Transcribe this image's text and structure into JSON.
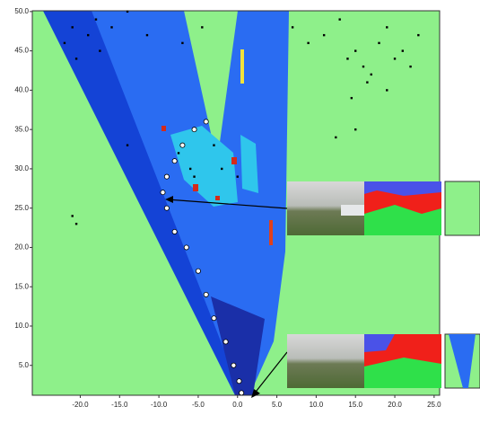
{
  "chart_data": {
    "type": "scatter",
    "xlim": [
      -26.1,
      25.7
    ],
    "ylim": [
      1.2,
      50.1
    ],
    "xticks": [
      {
        "value": -20,
        "label": "-20.0"
      },
      {
        "value": -15,
        "label": "-15.0"
      },
      {
        "value": -10,
        "label": "-10.0"
      },
      {
        "value": -5,
        "label": "-5.0"
      },
      {
        "value": 0,
        "label": "0.0"
      },
      {
        "value": 5,
        "label": "5.0"
      },
      {
        "value": 10,
        "label": "10.0"
      },
      {
        "value": 15,
        "label": "15.0"
      },
      {
        "value": 20,
        "label": "20.0"
      },
      {
        "value": 25,
        "label": "25.0"
      }
    ],
    "yticks": [
      {
        "value": 5,
        "label": "5.0"
      },
      {
        "value": 10,
        "label": "10.0"
      },
      {
        "value": 15,
        "label": "15.0"
      },
      {
        "value": 20,
        "label": "20.0"
      },
      {
        "value": 25,
        "label": "25.0"
      },
      {
        "value": 30,
        "label": "30.0"
      },
      {
        "value": 35,
        "label": "35.0"
      },
      {
        "value": 40,
        "label": "40.0"
      },
      {
        "value": 45,
        "label": "45.0"
      },
      {
        "value": 50,
        "label": "50.0"
      }
    ],
    "series": [
      {
        "color": "#ffffff",
        "x": [
          0.5,
          0.2,
          -0.5,
          -1.5,
          -3,
          -4,
          -5,
          -6.5,
          -8,
          -9,
          -9.5,
          -9,
          -8,
          -7,
          -5.5,
          -4
        ],
        "values": [
          1.5,
          3,
          5,
          8,
          11,
          14,
          17,
          20,
          22,
          25,
          27,
          29,
          31,
          33,
          35,
          36
        ]
      },
      {
        "color": "#000000",
        "x": [
          -22,
          -21,
          -20.5,
          -19,
          -18,
          -17.5,
          -16,
          -14,
          -11.5,
          -7,
          -4.5,
          -3,
          -2,
          0,
          7,
          9,
          11,
          13,
          14,
          15,
          16,
          17,
          18,
          19,
          20,
          21,
          22,
          23,
          14.5,
          16.5,
          19,
          15,
          12.5,
          -14,
          -7.5,
          -6,
          -5.5,
          -20.5,
          -21
        ],
        "values": [
          46,
          48,
          44,
          47,
          49,
          45,
          48,
          50,
          47,
          46,
          48,
          33,
          30,
          29,
          48,
          46,
          47,
          49,
          44,
          45,
          43,
          42,
          46,
          48,
          44,
          45,
          43,
          47,
          39,
          41,
          40,
          35,
          34,
          33,
          32,
          30,
          29,
          23,
          24
        ]
      }
    ]
  }
}
